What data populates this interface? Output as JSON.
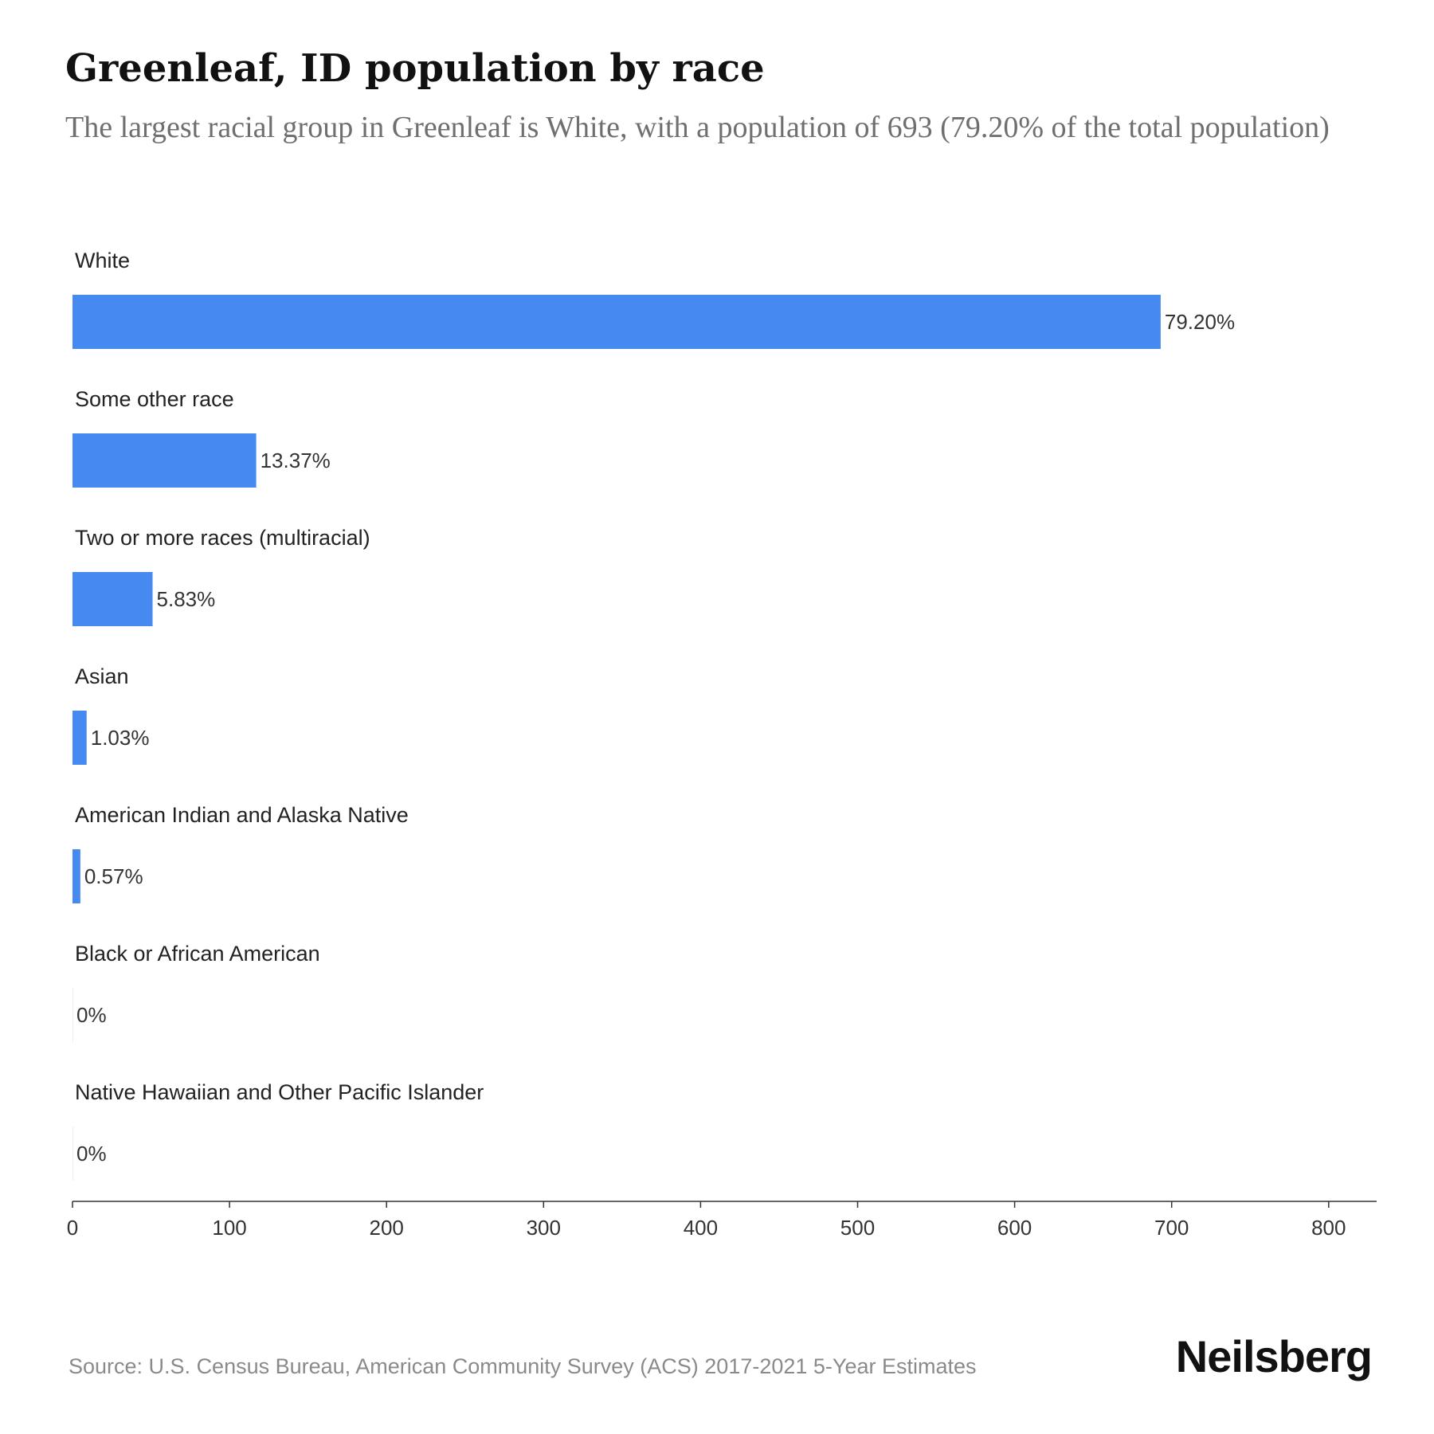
{
  "chart_data": {
    "type": "bar",
    "orientation": "horizontal",
    "title": "Greenleaf, ID population by race",
    "subtitle": "The largest racial group in Greenleaf is White, with a population of 693 (79.20% of the total population)",
    "categories": [
      "White",
      "Some other race",
      "Two or more races (multiracial)",
      "Asian",
      "American Indian and Alaska Native",
      "Black or African American",
      "Native Hawaiian and Other Pacific Islander"
    ],
    "values": [
      693,
      117,
      51,
      9,
      5,
      0,
      0
    ],
    "data_labels": [
      "79.20%",
      "13.37%",
      "5.83%",
      "1.03%",
      "0.57%",
      "0%",
      "0%"
    ],
    "xlim": [
      0,
      830
    ],
    "xticks": [
      0,
      100,
      200,
      300,
      400,
      500,
      600,
      700,
      800
    ],
    "xlabel": "",
    "ylabel": "",
    "grid": false,
    "legend": "none",
    "bar_color": "#4689f1"
  },
  "footer": {
    "source": "Source: U.S. Census Bureau, American Community Survey (ACS) 2017-2021 5-Year Estimates",
    "brand": "Neilsberg"
  }
}
